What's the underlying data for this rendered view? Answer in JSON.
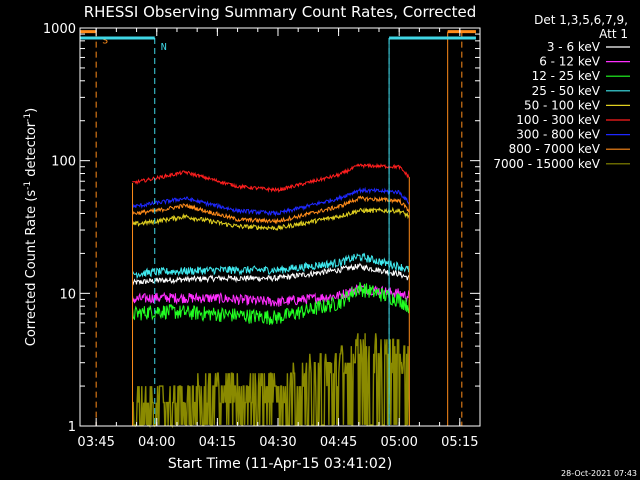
{
  "chart_data": {
    "type": "line",
    "title": "RHESSI Observing Summary Count Rates, Corrected",
    "xlabel": "Start Time (11-Apr-15 03:41:02)",
    "ylabel": "Corrected Count Rate (s",
    "ylabel_sup1": "-1",
    "ylabel_mid": " detector",
    "ylabel_sup2": "-1",
    "ylabel_end": ")",
    "y_scale": "log",
    "ylim": [
      1,
      1000
    ],
    "xlim_minutes": [
      221.0,
      320.0
    ],
    "x_ticks": [
      {
        "m": 225,
        "label": "03:45"
      },
      {
        "m": 240,
        "label": "04:00"
      },
      {
        "m": 255,
        "label": "04:15"
      },
      {
        "m": 270,
        "label": "04:30"
      },
      {
        "m": 285,
        "label": "04:45"
      },
      {
        "m": 300,
        "label": "05:00"
      },
      {
        "m": 315,
        "label": "05:15"
      }
    ],
    "y_ticks": [
      {
        "v": 1,
        "label": "1"
      },
      {
        "v": 10,
        "label": "10"
      },
      {
        "v": 100,
        "label": "100"
      },
      {
        "v": 1000,
        "label": "1000"
      }
    ],
    "legend": {
      "header1": "Det 1,3,5,6,7,9,",
      "header2": "Att 1",
      "position": "right"
    },
    "data_window_minutes": [
      234.0,
      302.5
    ],
    "markers": [
      {
        "kind": "S",
        "label": "S",
        "color": "#ff8c1a",
        "start": 221.0,
        "end": 225.0,
        "y": 940,
        "dashed_line_at": 225.0
      },
      {
        "kind": "S",
        "label": "",
        "color": "#ff8c1a",
        "start": 312.0,
        "end": 319.0,
        "y": 940,
        "dashed_line_at": 315.5
      },
      {
        "kind": "N",
        "label": "N",
        "color": "#3fd7e6",
        "start": 221.0,
        "end": 239.5,
        "y": 840,
        "dashed_line_at": 239.5
      },
      {
        "kind": "N",
        "label": "",
        "color": "#3fd7e6",
        "start": 297.5,
        "end": 319.0,
        "y": 840,
        "dashed_line_at": 297.5
      }
    ],
    "series": [
      {
        "name": "3 - 6 keV",
        "color": "#ffffff",
        "x": [
          234,
          240,
          255,
          270,
          285,
          290,
          300,
          302.5
        ],
        "values": [
          12,
          12.5,
          13,
          13,
          15,
          16,
          14,
          13
        ]
      },
      {
        "name": "6 - 12 keV",
        "color": "#ff2eff",
        "x": [
          234,
          240,
          255,
          270,
          285,
          290,
          300,
          302.5
        ],
        "values": [
          9,
          9.3,
          9.2,
          8.6,
          9.6,
          11,
          10,
          9.5
        ]
      },
      {
        "name": "12 - 25 keV",
        "color": "#22ff22",
        "x": [
          234,
          240,
          255,
          270,
          285,
          290,
          300,
          302.5
        ],
        "values": [
          7,
          7.4,
          7,
          6.6,
          8.5,
          11,
          9,
          8
        ]
      },
      {
        "name": "25 - 50 keV",
        "color": "#3fe8ee",
        "x": [
          234,
          240,
          255,
          270,
          285,
          290,
          300,
          302.5
        ],
        "values": [
          14,
          14.5,
          15,
          15,
          17,
          19,
          16,
          15
        ]
      },
      {
        "name": "50 - 100 keV",
        "color": "#e0d020",
        "x": [
          234,
          240,
          247,
          260,
          270,
          285,
          290,
          300,
          302.5
        ],
        "values": [
          33,
          35,
          38,
          32,
          31,
          38,
          42,
          42,
          38
        ]
      },
      {
        "name": "100 - 300 keV",
        "color": "#ff1e1e",
        "x": [
          234,
          240,
          247,
          260,
          270,
          285,
          290,
          300,
          302.5
        ],
        "values": [
          68,
          74,
          82,
          64,
          60,
          78,
          92,
          90,
          75
        ]
      },
      {
        "name": "300 - 800 keV",
        "color": "#1e28ff",
        "x": [
          234,
          240,
          247,
          260,
          270,
          285,
          290,
          300,
          302.5
        ],
        "values": [
          45,
          48,
          52,
          42,
          40,
          52,
          60,
          58,
          48
        ]
      },
      {
        "name": "800 - 7000 keV",
        "color": "#ff8c1a",
        "x": [
          234,
          240,
          247,
          260,
          270,
          285,
          290,
          300,
          302.5
        ],
        "values": [
          40,
          42,
          46,
          36,
          35,
          45,
          52,
          50,
          42
        ]
      },
      {
        "name": "7000 - 15000 keV",
        "color": "#8a8a00",
        "x": [
          234,
          240,
          255,
          270,
          285,
          290,
          300,
          302.5
        ],
        "values": [
          1.5,
          1.6,
          2.0,
          2.2,
          3.0,
          4.0,
          3.5,
          3.0
        ]
      }
    ]
  },
  "footer_timestamp": "28-Oct-2021 07:43"
}
